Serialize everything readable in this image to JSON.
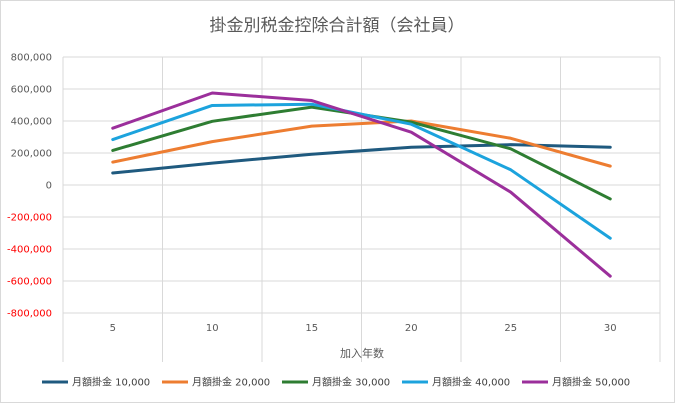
{
  "chart_data": {
    "type": "line",
    "title": "掛金別税金控除合計額（会社員）",
    "xlabel": "加入年数",
    "ylabel": "",
    "categories": [
      "5",
      "10",
      "15",
      "20",
      "25",
      "30"
    ],
    "ylim": [
      -800000,
      800000
    ],
    "y_ticks": [
      "800,000",
      "600,000",
      "400,000",
      "200,000",
      "0",
      "-200,000",
      "-400,000",
      "-600,000",
      "-800,000"
    ],
    "negative_tick_color": "#ff0000",
    "grid": true,
    "legend_position": "bottom",
    "series": [
      {
        "name": "月額掛金 10,000",
        "color": "#1f5a7f",
        "values": [
          75000,
          137000,
          192000,
          236000,
          252000,
          236000
        ]
      },
      {
        "name": "月額掛金 20,000",
        "color": "#ed7d31",
        "values": [
          143000,
          271000,
          368000,
          400000,
          292000,
          118000
        ]
      },
      {
        "name": "月額掛金 30,000",
        "color": "#2e7d32",
        "values": [
          216000,
          398000,
          487000,
          393000,
          226000,
          -87000
        ]
      },
      {
        "name": "月額掛金 40,000",
        "color": "#1ca3dd",
        "values": [
          284000,
          497000,
          505000,
          380000,
          95000,
          -333000
        ]
      },
      {
        "name": "月額掛金 50,000",
        "color": "#9b2f9b",
        "values": [
          355000,
          575000,
          528000,
          330000,
          -45000,
          -570000
        ]
      }
    ]
  }
}
